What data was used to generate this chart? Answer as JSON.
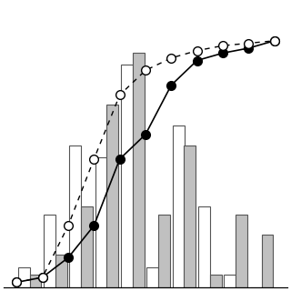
{
  "bar_positions": [
    1,
    2,
    3,
    4,
    5,
    6,
    7,
    8,
    9,
    10
  ],
  "white_bars": [
    0.5,
    1.8,
    3.5,
    3.2,
    5.5,
    0.5,
    4.0,
    2.0,
    0.3,
    0.0
  ],
  "gray_bars": [
    0.3,
    0.8,
    2.0,
    4.5,
    5.8,
    1.8,
    3.5,
    0.3,
    1.8,
    1.3
  ],
  "cum_solid_x": [
    0.5,
    1.5,
    2.5,
    3.5,
    4.5,
    5.5,
    6.5,
    7.5,
    8.5,
    9.5,
    10.5
  ],
  "cum_solid_y": [
    0.02,
    0.04,
    0.12,
    0.25,
    0.52,
    0.62,
    0.82,
    0.92,
    0.95,
    0.97,
    1.0
  ],
  "cum_dashed_x": [
    0.5,
    1.5,
    2.5,
    3.5,
    4.5,
    5.5,
    6.5,
    7.5,
    8.5,
    9.5,
    10.5
  ],
  "cum_dashed_y": [
    0.02,
    0.04,
    0.25,
    0.52,
    0.78,
    0.88,
    0.93,
    0.96,
    0.98,
    0.99,
    1.0
  ],
  "bar_width": 0.45,
  "xlim": [
    0,
    11
  ],
  "ylim_bars": [
    0,
    7
  ],
  "background_color": "#ffffff",
  "white_bar_color": "#ffffff",
  "gray_bar_color": "#c0c0c0",
  "bar_edge_color": "#555555"
}
